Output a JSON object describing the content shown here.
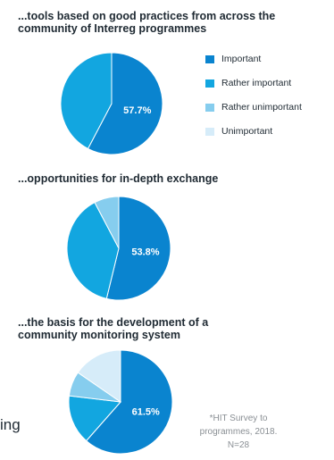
{
  "chart_data": [
    {
      "type": "pie",
      "title": "...tools based on good practices from across the community of Interreg programmes",
      "slices": [
        {
          "label": "Important",
          "value": 57.7,
          "color": "#0a84cf"
        },
        {
          "label": "Rather important",
          "value": 42.3,
          "color": "#12a6e0"
        },
        {
          "label": "Rather unimportant",
          "value": 0,
          "color": "#86cdee"
        },
        {
          "label": "Unimportant",
          "value": 0,
          "color": "#d6ecf9"
        }
      ],
      "data_label": "57.7%",
      "legend_position": "right"
    },
    {
      "type": "pie",
      "title": "...opportunities for in-depth exchange",
      "slices": [
        {
          "label": "Important",
          "value": 53.8,
          "color": "#0a84cf"
        },
        {
          "label": "Rather important",
          "value": 38.5,
          "color": "#12a6e0"
        },
        {
          "label": "Rather unimportant",
          "value": 7.7,
          "color": "#86cdee"
        },
        {
          "label": "Unimportant",
          "value": 0,
          "color": "#d6ecf9"
        }
      ],
      "data_label": "53.8%"
    },
    {
      "type": "pie",
      "title": "...the basis for the development of a community monitoring system",
      "slices": [
        {
          "label": "Important",
          "value": 61.5,
          "color": "#0a84cf"
        },
        {
          "label": "Rather important",
          "value": 15.4,
          "color": "#12a6e0"
        },
        {
          "label": "Rather unimportant",
          "value": 7.7,
          "color": "#86cdee"
        },
        {
          "label": "Unimportant",
          "value": 15.4,
          "color": "#d6ecf9"
        }
      ],
      "data_label": "61.5%"
    }
  ],
  "legend": [
    {
      "label": "Important",
      "color": "#0a84cf"
    },
    {
      "label": "Rather important",
      "color": "#12a6e0"
    },
    {
      "label": "Rather unimportant",
      "color": "#86cdee"
    },
    {
      "label": "Unimportant",
      "color": "#d6ecf9"
    }
  ],
  "source": {
    "line1": "*HIT Survey to",
    "line2": "programmes, 2018.",
    "line3": "N=28"
  },
  "fragment_text": "ing"
}
